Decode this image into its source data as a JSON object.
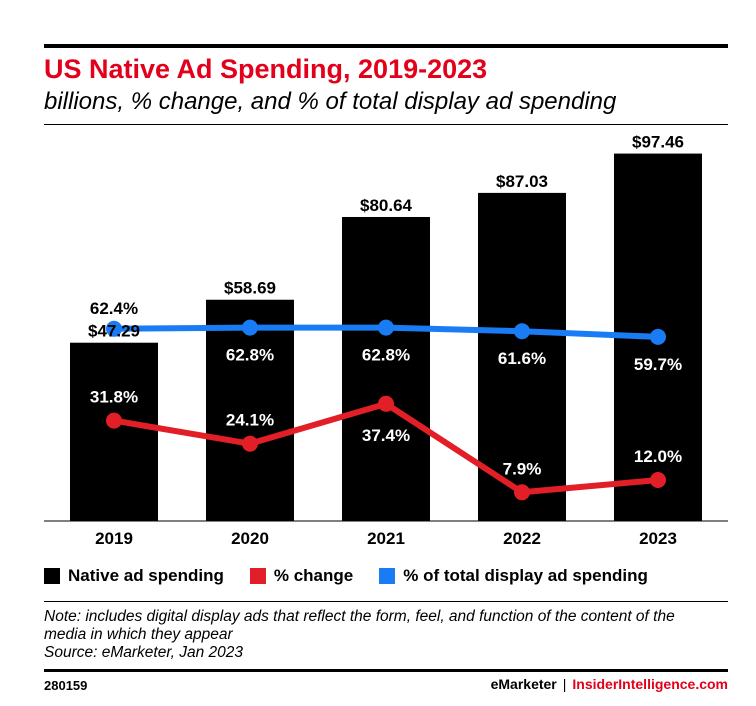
{
  "header": {
    "title": "US Native Ad Spending, 2019-2023",
    "subtitle": "billions, % change, and % of total display ad spending"
  },
  "chart_data": {
    "type": "bar",
    "title": "US Native Ad Spending, 2019-2023",
    "subtitle": "billions, % change, and % of total display ad spending",
    "categories": [
      "2019",
      "2020",
      "2021",
      "2022",
      "2023"
    ],
    "ylim": [
      0,
      100
    ],
    "grid": false,
    "legend_placement": "bottom",
    "series": [
      {
        "name": "Native ad spending",
        "type": "bar",
        "color": "#000000",
        "values": [
          47.29,
          58.69,
          80.64,
          87.03,
          97.46
        ],
        "labels": [
          "$47.29",
          "$58.69",
          "$80.64",
          "$87.03",
          "$97.46"
        ]
      },
      {
        "name": "% change",
        "type": "line",
        "color": "#e21f26",
        "values": [
          31.8,
          24.1,
          37.4,
          7.9,
          12.0
        ],
        "labels": [
          "31.8%",
          "24.1%",
          "37.4%",
          "7.9%",
          "12.0%"
        ]
      },
      {
        "name": "% of total display ad spending",
        "type": "line",
        "color": "#1a7cf5",
        "values": [
          62.4,
          62.8,
          62.8,
          61.6,
          59.7
        ],
        "labels": [
          "62.4%",
          "62.8%",
          "62.8%",
          "61.6%",
          "59.7%"
        ]
      }
    ]
  },
  "legend": {
    "items": [
      {
        "label": "Native ad spending",
        "color": "#000000"
      },
      {
        "label": "% change",
        "color": "#e21f26"
      },
      {
        "label": "% of total display ad spending",
        "color": "#1a7cf5"
      }
    ]
  },
  "notes": {
    "line1": "Note: includes digital display ads that reflect the form, feel, and function of the content of the",
    "line2": "media in which they appear",
    "source": "Source: eMarketer, Jan 2023"
  },
  "footer": {
    "chart_id": "280159",
    "brand_primary": "eMarketer",
    "separator": "|",
    "brand_secondary": "InsiderIntelligence.com"
  }
}
